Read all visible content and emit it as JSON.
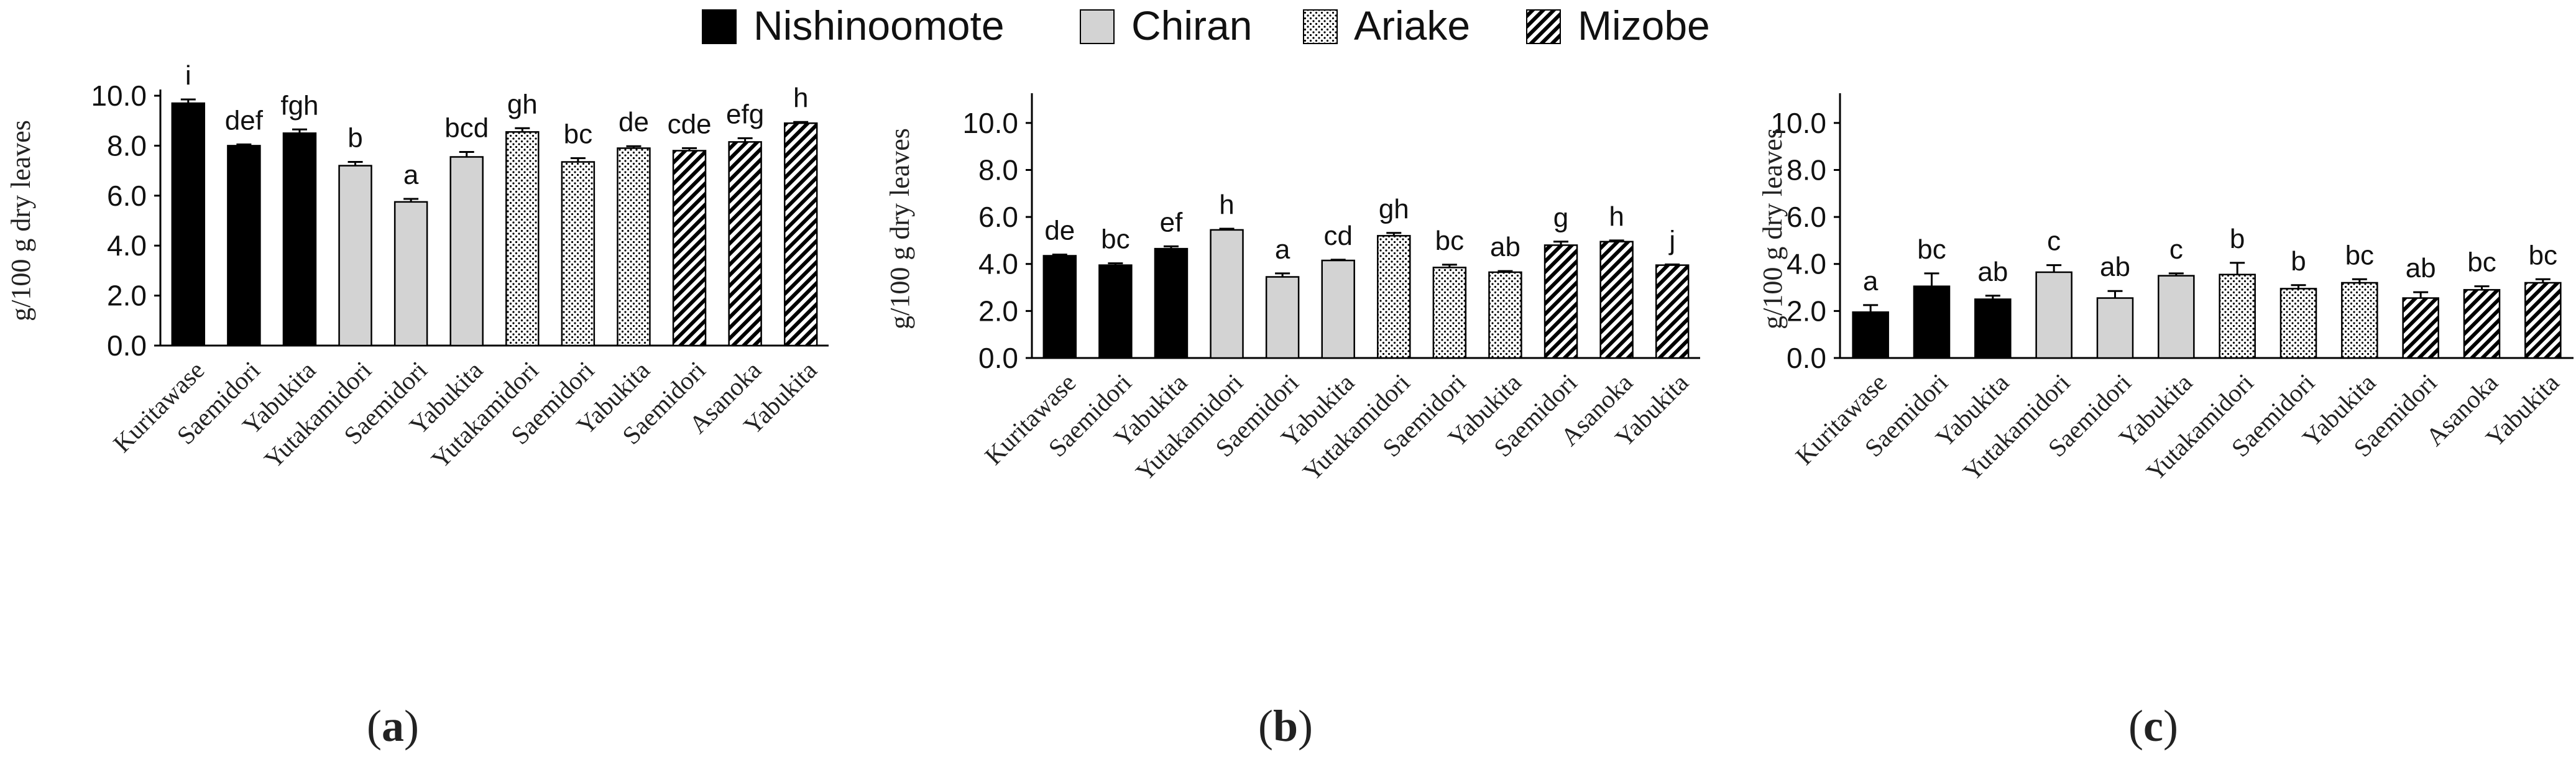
{
  "legend": {
    "items": [
      {
        "name": "Nishinoomote",
        "pattern": "solid"
      },
      {
        "name": "Chiran",
        "pattern": "gray"
      },
      {
        "name": "Ariake",
        "pattern": "dots"
      },
      {
        "name": "Mizobe",
        "pattern": "hatch"
      }
    ]
  },
  "colors": {
    "solid": "#000000",
    "gray": "#d3d3d3",
    "outline": "#000000"
  },
  "chart_data": [
    {
      "type": "bar",
      "panel_label": "(a)",
      "ylabel": "g/100 g dry leaves",
      "ylim": [
        0,
        10
      ],
      "yticks": [
        "0.0",
        "2.0",
        "4.0",
        "6.0",
        "8.0",
        "10.0"
      ],
      "categories": [
        "Kuritawase",
        "Saemidori",
        "Yabukita",
        "Yutakamidori",
        "Saemidori",
        "Yabukita",
        "Yutakamidori",
        "Saemidori",
        "Yabukita",
        "Saemidori",
        "Asanoka",
        "Yabukita"
      ],
      "groups": [
        "Nishinoomote",
        "Nishinoomote",
        "Nishinoomote",
        "Chiran",
        "Chiran",
        "Chiran",
        "Ariake",
        "Ariake",
        "Ariake",
        "Mizobe",
        "Mizobe",
        "Mizobe"
      ],
      "values": [
        9.7,
        8.0,
        8.5,
        7.2,
        5.75,
        7.55,
        8.55,
        7.35,
        7.9,
        7.8,
        8.15,
        8.9
      ],
      "errors": [
        0.15,
        0.05,
        0.15,
        0.15,
        0.12,
        0.2,
        0.15,
        0.15,
        0.08,
        0.1,
        0.15,
        0.05
      ],
      "letters": [
        "i",
        "def",
        "fgh",
        "b",
        "a",
        "bcd",
        "gh",
        "bc",
        "de",
        "cde",
        "efg",
        "h"
      ]
    },
    {
      "type": "bar",
      "panel_label": "(b)",
      "ylabel": "g/100 g dry leaves",
      "ylim": [
        0,
        11
      ],
      "yticks": [
        "0.0",
        "2.0",
        "4.0",
        "6.0",
        "8.0",
        "10.0"
      ],
      "categories": [
        "Kuritawase",
        "Saemidori",
        "Yabukita",
        "Yutakamidori",
        "Saemidori",
        "Yabukita",
        "Yutakamidori",
        "Saemidori",
        "Yabukita",
        "Saemidori",
        "Asanoka",
        "Yabukita"
      ],
      "groups": [
        "Nishinoomote",
        "Nishinoomote",
        "Nishinoomote",
        "Chiran",
        "Chiran",
        "Chiran",
        "Ariake",
        "Ariake",
        "Ariake",
        "Mizobe",
        "Mizobe",
        "Mizobe"
      ],
      "values": [
        4.35,
        3.95,
        4.65,
        5.45,
        3.45,
        4.15,
        5.2,
        3.85,
        3.65,
        4.8,
        4.95,
        3.95
      ],
      "errors": [
        0.05,
        0.08,
        0.1,
        0.05,
        0.15,
        0.03,
        0.12,
        0.12,
        0.05,
        0.15,
        0.05,
        0.03
      ],
      "letters": [
        "de",
        "bc",
        "ef",
        "h",
        "a",
        "cd",
        "gh",
        "bc",
        "ab",
        "g",
        "h",
        "j"
      ]
    },
    {
      "type": "bar",
      "panel_label": "(c)",
      "ylabel": "g/100 g dry leaves",
      "ylim": [
        0,
        11
      ],
      "yticks": [
        "0.0",
        "2.0",
        "4.0",
        "6.0",
        "8.0",
        "10.0"
      ],
      "categories": [
        "Kuritawase",
        "Saemidori",
        "Yabukita",
        "Yutakamidori",
        "Saemidori",
        "Yabukita",
        "Yutakamidori",
        "Saemidori",
        "Yabukita",
        "Saemidori",
        "Asanoka",
        "Yabukita"
      ],
      "groups": [
        "Nishinoomote",
        "Nishinoomote",
        "Nishinoomote",
        "Chiran",
        "Chiran",
        "Chiran",
        "Ariake",
        "Ariake",
        "Ariake",
        "Mizobe",
        "Mizobe",
        "Mizobe"
      ],
      "values": [
        1.95,
        3.05,
        2.5,
        3.65,
        2.55,
        3.5,
        3.55,
        2.95,
        3.2,
        2.55,
        2.9,
        3.2
      ],
      "errors": [
        0.3,
        0.55,
        0.15,
        0.3,
        0.3,
        0.1,
        0.5,
        0.15,
        0.15,
        0.25,
        0.15,
        0.15
      ],
      "letters": [
        "a",
        "bc",
        "ab",
        "c",
        "ab",
        "c",
        "b",
        "b",
        "bc",
        "ab",
        "bc",
        "bc"
      ]
    }
  ]
}
